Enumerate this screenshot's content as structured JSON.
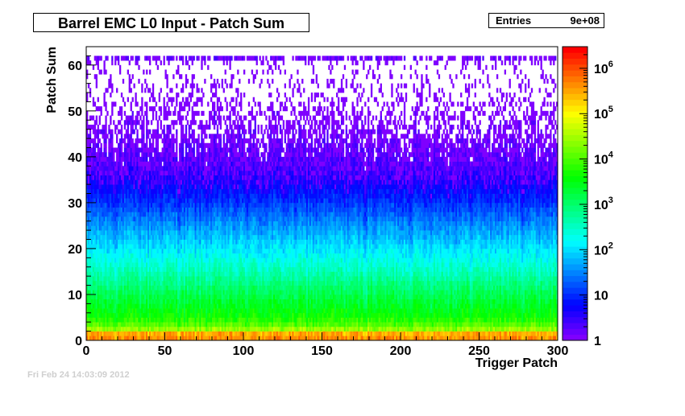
{
  "chart_data": {
    "type": "heatmap",
    "title": "Barrel EMC L0 Input - Patch Sum",
    "stats": {
      "label": "Entries",
      "value": "9e+08"
    },
    "xlabel": "Trigger Patch",
    "ylabel": "Patch Sum",
    "xlim": [
      0,
      300
    ],
    "ylim": [
      0,
      64
    ],
    "x_ticks": [
      "0",
      "50",
      "100",
      "150",
      "200",
      "250",
      "300"
    ],
    "y_ticks": [
      "0",
      "10",
      "20",
      "30",
      "40",
      "50",
      "60"
    ],
    "z_scale": "log",
    "zlim": [
      1,
      3000000
    ],
    "z_ticks": [
      {
        "base": "1",
        "exp": ""
      },
      {
        "base": "10",
        "exp": ""
      },
      {
        "base": "10",
        "exp": "2"
      },
      {
        "base": "10",
        "exp": "3"
      },
      {
        "base": "10",
        "exp": "4"
      },
      {
        "base": "10",
        "exp": "5"
      },
      {
        "base": "10",
        "exp": "6"
      }
    ],
    "z_tick_values": [
      1,
      10,
      100,
      1000,
      10000,
      100000,
      1000000
    ],
    "palette": [
      "#7f00ff",
      "#0000ff",
      "#0080ff",
      "#00ffff",
      "#00ff80",
      "#00ff00",
      "#80ff00",
      "#ffff00",
      "#ff8000",
      "#ff0000"
    ],
    "profile": [
      {
        "y": 0,
        "z": 100000
      },
      {
        "y": 1,
        "z": 2000000
      },
      {
        "y": 2,
        "z": 50000
      },
      {
        "y": 3,
        "z": 15000
      },
      {
        "y": 5,
        "z": 5000
      },
      {
        "y": 10,
        "z": 1500
      },
      {
        "y": 15,
        "z": 400
      },
      {
        "y": 20,
        "z": 120
      },
      {
        "y": 25,
        "z": 40
      },
      {
        "y": 30,
        "z": 12
      },
      {
        "y": 35,
        "z": 4
      },
      {
        "y": 40,
        "z": 1.8
      },
      {
        "y": 45,
        "z": 1
      },
      {
        "y": 50,
        "z": 0.6
      },
      {
        "y": 55,
        "z": 0.3
      },
      {
        "y": 60,
        "z": 0.2
      },
      {
        "y": 62,
        "z": 2
      },
      {
        "y": 63,
        "z": 0
      }
    ]
  },
  "footer": "Fri Feb 24 14:03:09 2012"
}
